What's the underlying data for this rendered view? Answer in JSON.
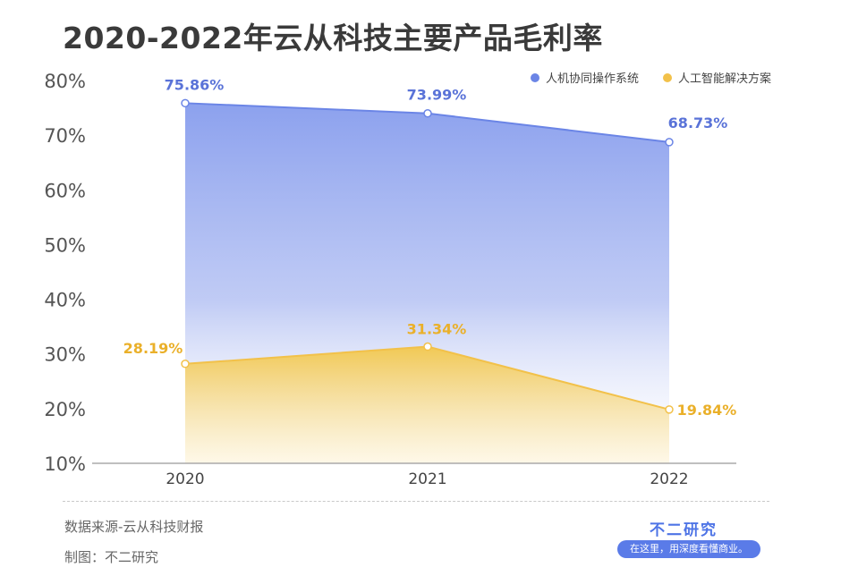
{
  "title": "2020-2022年云从科技主要产品毛利率",
  "chart_data": {
    "type": "area",
    "x": [
      "2020",
      "2021",
      "2022"
    ],
    "ylim": [
      10,
      80
    ],
    "yticks": [
      "10%",
      "20%",
      "30%",
      "40%",
      "50%",
      "60%",
      "70%",
      "80%"
    ],
    "legend_position": "top-right",
    "series": [
      {
        "name": "人机协同操作系统",
        "values": [
          75.86,
          73.99,
          68.73
        ],
        "labels": [
          "75.86%",
          "73.99%",
          "68.73%"
        ],
        "color": "#6b85e6"
      },
      {
        "name": "人工智能解决方案",
        "values": [
          28.19,
          31.34,
          19.84
        ],
        "labels": [
          "28.19%",
          "31.34%",
          "19.84%"
        ],
        "color": "#f2c14a"
      }
    ]
  },
  "footer": {
    "source": "数据来源-云从科技财报",
    "credit": "制图：不二研究",
    "brand": "不二研究",
    "slogan": "在这里，用深度看懂商业。"
  }
}
